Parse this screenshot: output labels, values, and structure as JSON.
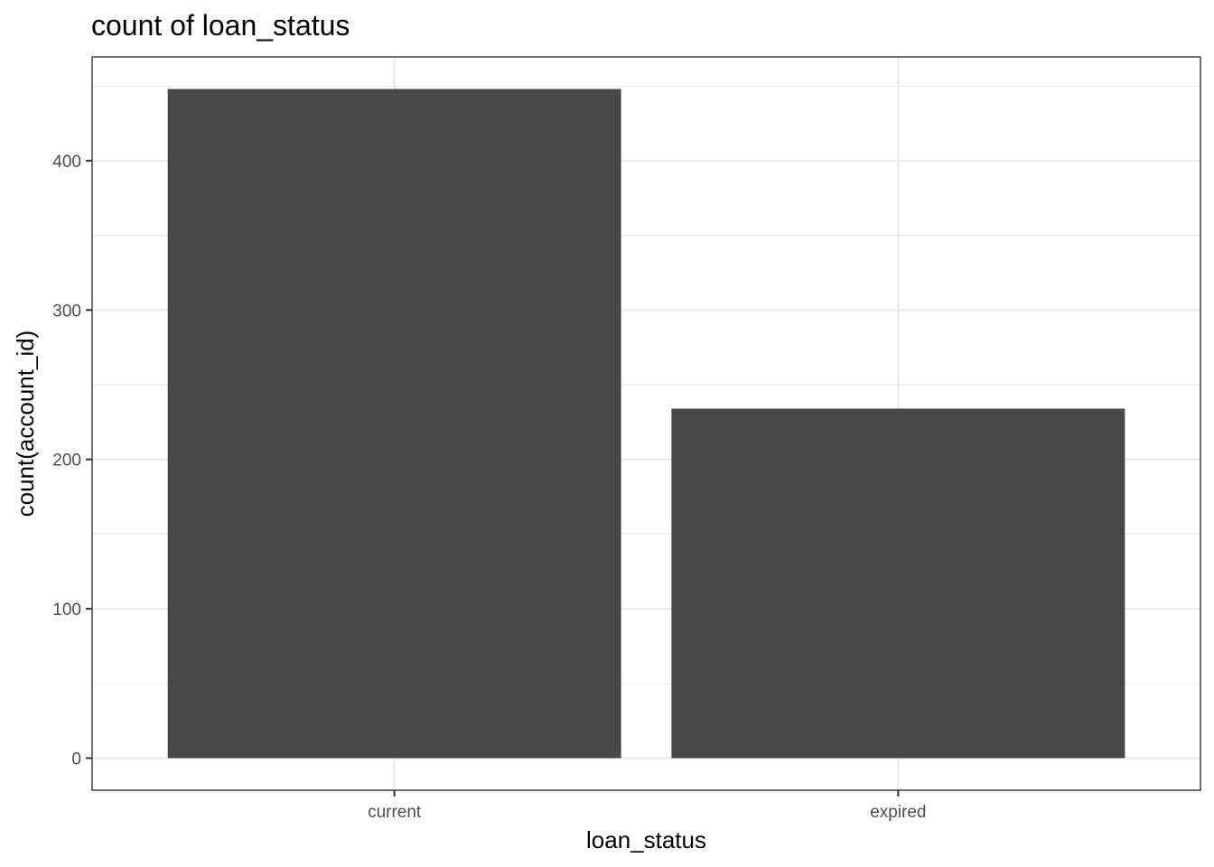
{
  "chart_data": {
    "type": "bar",
    "title": "count of loan_status",
    "xlabel": "loan_status",
    "ylabel": "count(account_id)",
    "categories": [
      "current",
      "expired"
    ],
    "values": [
      448,
      234
    ],
    "ylim": [
      -21.5,
      469.5
    ],
    "yticks": [
      0,
      100,
      200,
      300,
      400
    ],
    "ytick_labels": [
      "0",
      "100",
      "200",
      "300",
      "400"
    ],
    "grid": true,
    "bar_color": "#484848",
    "gridline_color": "#ebebeb"
  }
}
